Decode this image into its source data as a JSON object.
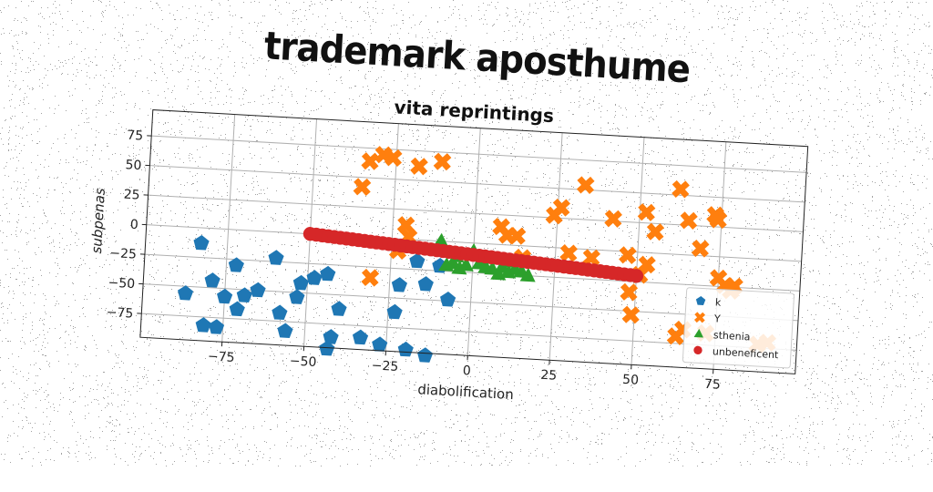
{
  "chart_data": {
    "type": "scatter",
    "title": "trademark aposthume",
    "subtitle": "vita reprintings",
    "xlabel": "diabolification",
    "ylabel": "subpenas",
    "xlim": [
      -100,
      100
    ],
    "ylim": [
      -95,
      97
    ],
    "xticks": [
      -75,
      -50,
      -25,
      0,
      25,
      50,
      75
    ],
    "yticks": [
      -75,
      -50,
      -25,
      0,
      25,
      50,
      75
    ],
    "grid": true,
    "legend_position": "bottom-right",
    "series": [
      {
        "name": "k",
        "marker": "pentagon",
        "color": "#1f77b4",
        "points": [
          [
            -87,
            -56
          ],
          [
            -83,
            -13
          ],
          [
            -81,
            -82
          ],
          [
            -79,
            -44
          ],
          [
            -77,
            -83
          ],
          [
            -75,
            -57
          ],
          [
            -72,
            -30
          ],
          [
            -71,
            -67
          ],
          [
            -69,
            -55
          ],
          [
            -65,
            -50
          ],
          [
            -60,
            -22
          ],
          [
            -58,
            -68
          ],
          [
            -56,
            -83
          ],
          [
            -53,
            -54
          ],
          [
            -52,
            -42
          ],
          [
            -48,
            -37
          ],
          [
            -44,
            -33
          ],
          [
            -43,
            -96
          ],
          [
            -42,
            -86
          ],
          [
            -40,
            -62
          ],
          [
            -33,
            -85
          ],
          [
            -27,
            -90
          ],
          [
            -23,
            -62
          ],
          [
            -22,
            -39
          ],
          [
            -19,
            -93
          ],
          [
            -17,
            -18
          ],
          [
            -14,
            -37
          ],
          [
            -13,
            -97
          ],
          [
            -10,
            -21
          ],
          [
            -7,
            -49
          ]
        ]
      },
      {
        "name": "Y",
        "marker": "x",
        "color": "#ff7f0e",
        "points": [
          [
            -35,
            42
          ],
          [
            -33,
            64
          ],
          [
            -31,
            -34
          ],
          [
            -29,
            70
          ],
          [
            -26,
            68
          ],
          [
            -23,
            -10
          ],
          [
            -21,
            12
          ],
          [
            -20,
            2
          ],
          [
            -18,
            62
          ],
          [
            -11,
            67
          ],
          [
            8,
            15
          ],
          [
            10,
            8
          ],
          [
            13,
            8
          ],
          [
            15,
            -10
          ],
          [
            24,
            27
          ],
          [
            26,
            34
          ],
          [
            29,
            -4
          ],
          [
            33,
            54
          ],
          [
            36,
            -7
          ],
          [
            42,
            27
          ],
          [
            47,
            -3
          ],
          [
            48,
            -34
          ],
          [
            49,
            -53
          ],
          [
            51,
            -19
          ],
          [
            52,
            34
          ],
          [
            53,
            -10
          ],
          [
            55,
            18
          ],
          [
            62,
            55
          ],
          [
            63,
            -69
          ],
          [
            65,
            -63
          ],
          [
            65,
            29
          ],
          [
            69,
            6
          ],
          [
            72,
            -65
          ],
          [
            73,
            35
          ],
          [
            74,
            31
          ],
          [
            75,
            -18
          ],
          [
            77,
            -24
          ],
          [
            79,
            -28
          ],
          [
            80,
            -24
          ],
          [
            88,
            -72
          ],
          [
            91,
            -70
          ]
        ]
      },
      {
        "name": "sthenia",
        "marker": "triangle",
        "color": "#2ca02c",
        "points": [
          [
            -10,
            0
          ],
          [
            -8,
            -20
          ],
          [
            -6,
            -18
          ],
          [
            -4,
            -22
          ],
          [
            -2,
            -19
          ],
          [
            0,
            -7
          ],
          [
            2,
            -17
          ],
          [
            4,
            -20
          ],
          [
            6,
            -21
          ],
          [
            8,
            -25
          ],
          [
            9,
            -19
          ],
          [
            11,
            -23
          ],
          [
            13,
            -20
          ],
          [
            15,
            -22
          ],
          [
            17,
            -25
          ],
          [
            -5,
            -12
          ],
          [
            3,
            -12
          ],
          [
            10,
            -14
          ]
        ]
      },
      {
        "name": "unbeneficent",
        "marker": "circle",
        "color": "#d62728",
        "line": {
          "x_start": -50,
          "y_start": 0,
          "x_end": 50,
          "y_end": -20,
          "points": 55
        }
      }
    ]
  }
}
